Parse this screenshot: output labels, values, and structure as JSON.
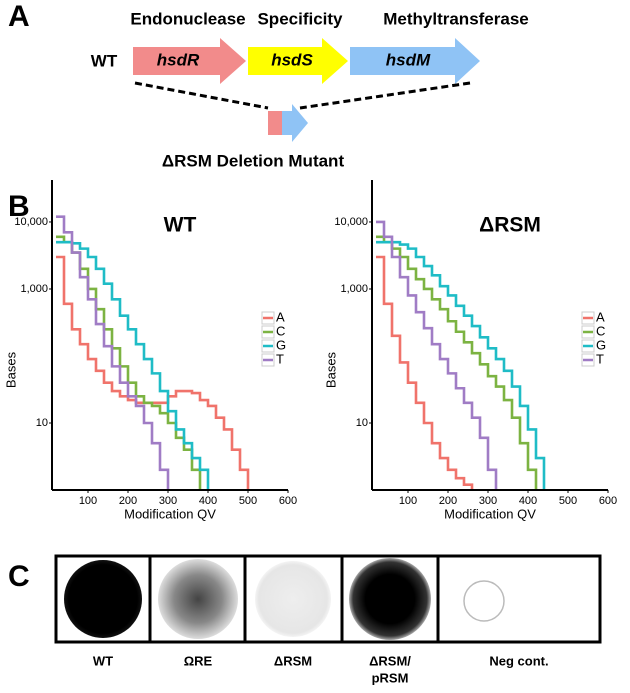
{
  "panel_labels": [
    "A",
    "B",
    "C"
  ],
  "panel_a": {
    "headers": [
      "Endonuclease",
      "Specificity",
      "Methyltransferase"
    ],
    "strain": "WT",
    "genes": [
      "hsdR",
      "hsdS",
      "hsdM"
    ],
    "mutant": "ΔRSM Deletion Mutant"
  },
  "chart_data": [
    {
      "type": "line",
      "step": true,
      "title": "WT",
      "x_label": "Modification QV",
      "y_label": "Bases",
      "x": [
        20,
        40,
        60,
        80,
        100,
        120,
        140,
        160,
        180,
        200,
        220,
        240,
        260,
        280,
        300,
        320,
        340,
        360,
        380,
        400,
        420,
        440,
        460,
        480,
        500
      ],
      "series": [
        {
          "name": "A",
          "color": "#f0736b",
          "values": [
            3000,
            600,
            250,
            150,
            90,
            60,
            40,
            30,
            25,
            22,
            20,
            20,
            20,
            20,
            25,
            30,
            30,
            28,
            22,
            18,
            12,
            8,
            4,
            2,
            1
          ]
        },
        {
          "name": "C",
          "color": "#7cb342",
          "values": [
            6000,
            5000,
            3500,
            2000,
            1000,
            500,
            250,
            130,
            70,
            40,
            25,
            20,
            18,
            14,
            10,
            6,
            4,
            2,
            1,
            null,
            null,
            null,
            null,
            null,
            null
          ]
        },
        {
          "name": "G",
          "color": "#1fbcc6",
          "values": [
            5000,
            5000,
            4800,
            4000,
            3000,
            2000,
            1200,
            700,
            400,
            250,
            150,
            90,
            55,
            30,
            15,
            8,
            5,
            3,
            2,
            1,
            null,
            null,
            null,
            null,
            null
          ]
        },
        {
          "name": "T",
          "color": "#a07cc5",
          "values": [
            12000,
            7000,
            3500,
            1500,
            700,
            300,
            140,
            70,
            40,
            25,
            18,
            10,
            5,
            2,
            1,
            null,
            null,
            null,
            null,
            null,
            null,
            null,
            null,
            null,
            null
          ]
        }
      ],
      "xlim": [
        10,
        600
      ],
      "xticks": [
        100,
        200,
        300,
        400,
        500,
        600
      ],
      "ylim": [
        1,
        30000
      ],
      "log_y": true,
      "yticks": [
        10,
        {
          "value": 1000,
          "label": "1,000"
        },
        {
          "value": 10000,
          "label": "10,000"
        }
      ],
      "legend": "right"
    },
    {
      "type": "line",
      "step": true,
      "title": "ΔRSM",
      "x_label": "Modification QV",
      "y_label": "Bases",
      "x": [
        20,
        40,
        60,
        80,
        100,
        120,
        140,
        160,
        180,
        200,
        220,
        240,
        260,
        280,
        300,
        320,
        340,
        360,
        380,
        400,
        420,
        440
      ],
      "series": [
        {
          "name": "A",
          "color": "#f0736b",
          "values": [
            3000,
            600,
            200,
            80,
            40,
            20,
            10,
            5,
            3,
            2,
            1.5,
            1.2,
            1,
            null,
            null,
            null,
            null,
            null,
            null,
            null,
            null,
            null
          ]
        },
        {
          "name": "C",
          "color": "#7cb342",
          "values": [
            6000,
            5000,
            4000,
            3000,
            2000,
            1400,
            1000,
            700,
            500,
            330,
            230,
            160,
            110,
            75,
            50,
            35,
            22,
            12,
            5,
            2,
            1,
            null
          ]
        },
        {
          "name": "G",
          "color": "#1fbcc6",
          "values": [
            5000,
            5000,
            5000,
            4600,
            4000,
            3000,
            2200,
            1600,
            1100,
            800,
            560,
            400,
            280,
            190,
            130,
            90,
            60,
            35,
            18,
            8,
            3,
            1
          ]
        },
        {
          "name": "T",
          "color": "#a07cc5",
          "values": [
            10000,
            6000,
            3000,
            1500,
            800,
            450,
            260,
            150,
            90,
            55,
            33,
            20,
            12,
            6,
            2,
            1,
            null,
            null,
            null,
            null,
            null,
            null
          ]
        }
      ],
      "xlim": [
        10,
        600
      ],
      "xticks": [
        100,
        200,
        300,
        400,
        500,
        600
      ],
      "ylim": [
        1,
        30000
      ],
      "log_y": true,
      "yticks": [
        10,
        {
          "value": 1000,
          "label": "1,000"
        },
        {
          "value": 10000,
          "label": "10,000"
        }
      ],
      "legend": "right"
    }
  ],
  "panel_c": {
    "samples": [
      [
        "WT"
      ],
      [
        "ΩRE"
      ],
      [
        "ΔRSM"
      ],
      [
        "ΔRSM/",
        "pRSM"
      ],
      [
        "Neg cont."
      ]
    ]
  }
}
